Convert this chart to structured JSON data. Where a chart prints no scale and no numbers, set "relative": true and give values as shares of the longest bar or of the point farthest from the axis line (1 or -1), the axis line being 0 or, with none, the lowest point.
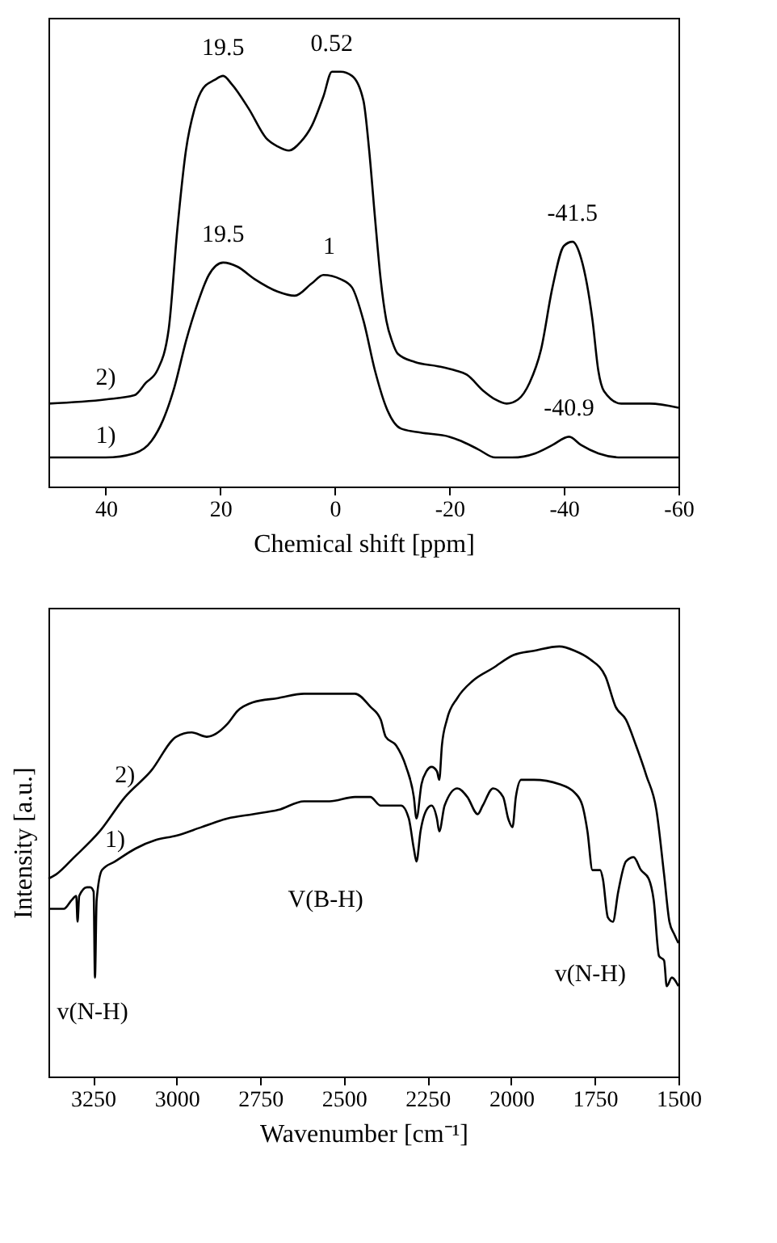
{
  "chart_data": [
    {
      "type": "line",
      "xlabel": "Chemical shift [ppm]",
      "relative": true,
      "grid": false,
      "marker": "none",
      "line_style": "solid",
      "xlim": [
        50,
        -60
      ],
      "xticks": [
        40,
        20,
        0,
        -20,
        -40,
        -60
      ],
      "tick_labels": "x",
      "series": [
        {
          "name": "1)",
          "color": "#000000",
          "x": [
            50,
            40,
            35,
            32,
            30,
            28,
            26,
            24,
            22,
            19.5,
            17,
            14,
            10,
            7,
            4,
            2,
            -1,
            -3,
            -5,
            -7,
            -9,
            -11.5,
            -15,
            -20,
            -22,
            -25,
            -28,
            -31,
            -35,
            -38,
            -40.9,
            -43,
            -46,
            -50,
            -60
          ],
          "values": [
            0.07,
            0.07,
            0.08,
            0.11,
            0.16,
            0.24,
            0.35,
            0.44,
            0.51,
            0.54,
            0.53,
            0.5,
            0.47,
            0.46,
            0.49,
            0.51,
            0.5,
            0.48,
            0.4,
            0.28,
            0.19,
            0.14,
            0.13,
            0.12,
            0.11,
            0.09,
            0.07,
            0.07,
            0.08,
            0.1,
            0.12,
            0.1,
            0.08,
            0.07,
            0.07
          ]
        },
        {
          "name": "2)",
          "color": "#000000",
          "x": [
            50,
            40,
            35,
            33,
            31,
            29,
            27.5,
            26,
            24.5,
            23,
            21,
            19.5,
            18,
            15,
            12,
            10,
            8,
            6,
            4,
            2,
            0.5,
            -1,
            -3,
            -5,
            -6,
            -7,
            -8,
            -9,
            -10,
            -11,
            -14,
            -18,
            -21,
            -23,
            -26,
            -28,
            -30,
            -32,
            -34,
            -36,
            -38,
            -40,
            -41.5,
            -43,
            -45,
            -46,
            -47,
            -50,
            -55,
            -60
          ],
          "values": [
            0.2,
            0.21,
            0.22,
            0.25,
            0.28,
            0.38,
            0.62,
            0.81,
            0.91,
            0.96,
            0.98,
            0.99,
            0.97,
            0.91,
            0.84,
            0.82,
            0.81,
            0.83,
            0.87,
            0.94,
            1.0,
            1.0,
            0.99,
            0.93,
            0.81,
            0.65,
            0.5,
            0.4,
            0.35,
            0.32,
            0.3,
            0.29,
            0.28,
            0.27,
            0.23,
            0.21,
            0.2,
            0.21,
            0.25,
            0.33,
            0.48,
            0.58,
            0.59,
            0.55,
            0.4,
            0.28,
            0.23,
            0.2,
            0.2,
            0.19
          ]
        }
      ],
      "annotations": [
        {
          "text": "19.5",
          "x": 19.5,
          "y": 0.99
        },
        {
          "text": "0.52",
          "x": 0.52,
          "y": 1.0
        },
        {
          "text": "19.5",
          "x": 19.5,
          "y": 0.54
        },
        {
          "text": "1",
          "x": 1,
          "y": 0.51
        },
        {
          "text": "-41.5",
          "x": -41.5,
          "y": 0.59
        },
        {
          "text": "-40.9",
          "x": -40.9,
          "y": 0.12
        }
      ]
    },
    {
      "type": "line",
      "xlabel": "Wavenumber [cm⁻¹]",
      "ylabel": "Intensity [a.u.]",
      "relative": true,
      "grid": false,
      "marker": "none",
      "line_style": "solid",
      "xlim": [
        3383,
        1500
      ],
      "xticks": [
        3250,
        3000,
        2750,
        2500,
        2250,
        2000,
        1750,
        1500
      ],
      "tick_labels": "x",
      "series": [
        {
          "name": "1)",
          "color": "#000000",
          "x": [
            3383,
            3337,
            3314,
            3300,
            3296,
            3291,
            3268,
            3258,
            3248,
            3244,
            3239,
            3223,
            3184,
            3123,
            3062,
            3001,
            2925,
            2848,
            2772,
            2696,
            2619,
            2543,
            2467,
            2421,
            2390,
            2360,
            2329,
            2306,
            2291,
            2283,
            2271,
            2253,
            2238,
            2222,
            2215,
            2199,
            2161,
            2131,
            2100,
            2085,
            2054,
            2024,
            2009,
            1996,
            1986,
            1970,
            1932,
            1856,
            1810,
            1787,
            1772,
            1757,
            1734,
            1726,
            1711,
            1696,
            1680,
            1657,
            1634,
            1612,
            1589,
            1574,
            1558,
            1543,
            1535,
            1520,
            1500
          ],
          "values": [
            0.39,
            0.39,
            0.41,
            0.42,
            0.36,
            0.42,
            0.44,
            0.44,
            0.43,
            0.23,
            0.41,
            0.48,
            0.5,
            0.53,
            0.55,
            0.56,
            0.58,
            0.6,
            0.61,
            0.62,
            0.64,
            0.64,
            0.65,
            0.65,
            0.63,
            0.63,
            0.63,
            0.6,
            0.53,
            0.5,
            0.57,
            0.62,
            0.63,
            0.6,
            0.57,
            0.63,
            0.67,
            0.65,
            0.61,
            0.63,
            0.67,
            0.65,
            0.6,
            0.58,
            0.65,
            0.69,
            0.69,
            0.68,
            0.66,
            0.63,
            0.57,
            0.48,
            0.48,
            0.46,
            0.37,
            0.36,
            0.43,
            0.5,
            0.51,
            0.48,
            0.46,
            0.41,
            0.28,
            0.27,
            0.21,
            0.23,
            0.21
          ]
        },
        {
          "name": "2)",
          "color": "#000000",
          "x": [
            3383,
            3360,
            3306,
            3230,
            3154,
            3077,
            3001,
            2955,
            2909,
            2848,
            2818,
            2772,
            2696,
            2619,
            2543,
            2467,
            2421,
            2390,
            2375,
            2344,
            2314,
            2291,
            2283,
            2268,
            2253,
            2238,
            2222,
            2215,
            2207,
            2192,
            2161,
            2115,
            2054,
            1993,
            1932,
            1856,
            1810,
            1764,
            1718,
            1688,
            1657,
            1627,
            1596,
            1566,
            1543,
            1527,
            1512,
            1500
          ],
          "values": [
            0.46,
            0.47,
            0.51,
            0.57,
            0.65,
            0.71,
            0.79,
            0.8,
            0.79,
            0.82,
            0.85,
            0.87,
            0.88,
            0.89,
            0.89,
            0.89,
            0.86,
            0.83,
            0.79,
            0.77,
            0.72,
            0.65,
            0.6,
            0.68,
            0.71,
            0.72,
            0.71,
            0.69,
            0.77,
            0.83,
            0.88,
            0.92,
            0.95,
            0.98,
            0.99,
            1.0,
            0.99,
            0.97,
            0.93,
            0.86,
            0.83,
            0.77,
            0.7,
            0.62,
            0.47,
            0.36,
            0.33,
            0.31
          ]
        }
      ],
      "annotations": [
        "v(N-H)",
        "V(B-H)",
        "v(N-H)"
      ]
    }
  ]
}
